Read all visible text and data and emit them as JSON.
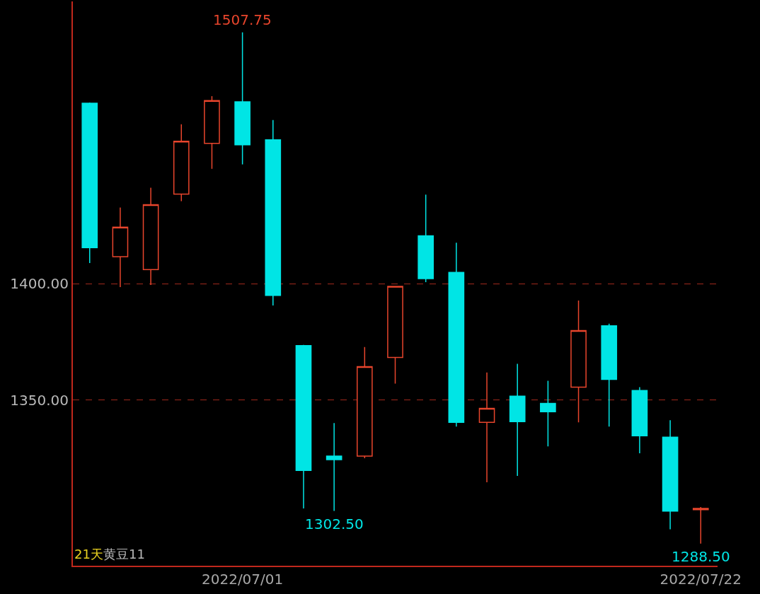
{
  "chart_data": {
    "type": "candlestick",
    "categories": [
      null,
      null,
      null,
      null,
      null,
      "2022/07/01",
      null,
      null,
      null,
      null,
      null,
      null,
      null,
      null,
      null,
      null,
      null,
      null,
      null,
      null,
      "2022/07/22"
    ],
    "ohlc": [
      [
        1477.3,
        1477.6,
        1408.8,
        1415.4
      ],
      [
        1411.5,
        1432.6,
        1398.5,
        1424.2
      ],
      [
        1406.0,
        1441.1,
        1399.4,
        1433.8
      ],
      [
        1438.4,
        1468.3,
        1435.3,
        1461.0
      ],
      [
        1460.1,
        1480.4,
        1449.2,
        1478.5
      ],
      [
        1477.9,
        1507.75,
        1451.1,
        1459.5
      ],
      [
        1461.6,
        1470.1,
        1390.6,
        1394.9
      ],
      [
        1373.4,
        1373.7,
        1303.6,
        1319.9
      ],
      [
        1326.0,
        1340.2,
        1302.5,
        1324.5
      ],
      [
        1326.0,
        1372.8,
        1325.1,
        1364.4
      ],
      [
        1368.3,
        1399.0,
        1357.1,
        1398.8
      ],
      [
        1420.5,
        1438.1,
        1400.6,
        1402.1
      ],
      [
        1404.8,
        1417.5,
        1338.7,
        1340.5
      ],
      [
        1340.5,
        1361.9,
        1314.8,
        1346.5
      ],
      [
        1351.7,
        1365.6,
        1317.5,
        1340.8
      ],
      [
        1348.6,
        1358.3,
        1330.2,
        1345.0
      ],
      [
        1355.6,
        1392.7,
        1340.5,
        1379.8
      ],
      [
        1381.9,
        1382.8,
        1338.7,
        1358.9
      ],
      [
        1354.1,
        1355.6,
        1327.2,
        1334.7
      ],
      [
        1334.1,
        1341.4,
        1294.6,
        1302.4
      ],
      [
        1303.0,
        1304.2,
        1288.5,
        1303.6
      ]
    ],
    "colors": [
      "#00e5e5",
      "#e8452c",
      "#e8452c",
      "#e8452c",
      "#e8452c",
      "#00e5e5",
      "#00e5e5",
      "#00e5e5",
      "#00e5e5",
      "#e8452c",
      "#e8452c",
      "#00e5e5",
      "#00e5e5",
      "#e8452c",
      "#00e5e5",
      "#00e5e5",
      "#e8452c",
      "#00e5e5",
      "#00e5e5",
      "#00e5e5",
      "#e8452c"
    ],
    "ylim": [
      1279,
      1521
    ],
    "yticks": [
      {
        "value": 1350,
        "label": "1350.00"
      },
      {
        "value": 1400,
        "label": "1400.00"
      }
    ],
    "grid": "y",
    "annotations": [
      {
        "text": "1507.75",
        "x": "2022/07/01",
        "y": 1507.75
      },
      {
        "text": "1302.50",
        "y": 1302.5
      },
      {
        "text": "1288.50",
        "x": "2022/07/22",
        "y": 1288.5
      },
      "21天",
      "黄豆11"
    ]
  }
}
